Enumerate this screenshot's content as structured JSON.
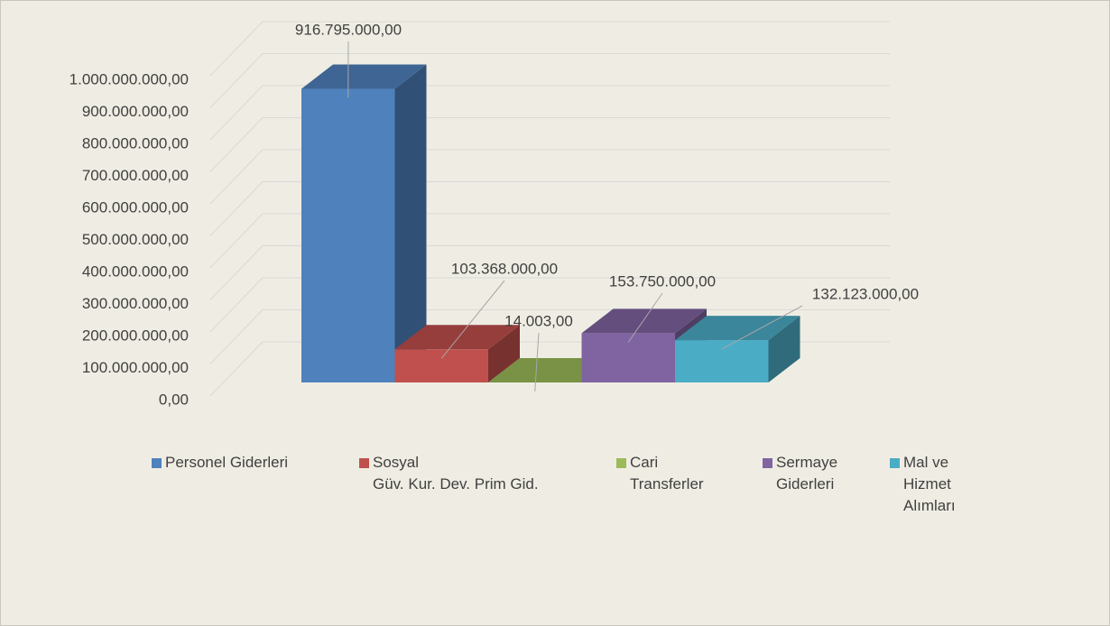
{
  "chart_data": {
    "type": "bar3d",
    "categories": [
      null
    ],
    "series": [
      {
        "name": "Personel Giderleri",
        "color": "#4f81bd",
        "values": [
          916795000
        ],
        "value_labels": [
          "916.795.000,00"
        ]
      },
      {
        "name": "Sosyal\nGüv. Kur. Dev. Prim Gid.",
        "color": "#c0504d",
        "values": [
          103368000
        ],
        "value_labels": [
          "103.368.000,00"
        ]
      },
      {
        "name": "Cari\nTransferler",
        "color": "#9bbb59",
        "values": [
          14003
        ],
        "value_labels": [
          "14.003,00"
        ]
      },
      {
        "name": "Sermaye\nGiderleri",
        "color": "#8064a2",
        "values": [
          153750000
        ],
        "value_labels": [
          "153.750.000,00"
        ]
      },
      {
        "name": "Mal ve\nHizmet\nAlımları",
        "color": "#4bacc6",
        "values": [
          132123000
        ],
        "value_labels": [
          "132.123.000,00"
        ]
      }
    ],
    "ylim": [
      0,
      1000000000
    ],
    "yticks": [
      {
        "value": 0,
        "label": "0,00"
      },
      {
        "value": 100000000,
        "label": "100.000.000,00"
      },
      {
        "value": 200000000,
        "label": "200.000.000,00"
      },
      {
        "value": 300000000,
        "label": "300.000.000,00"
      },
      {
        "value": 400000000,
        "label": "400.000.000,00"
      },
      {
        "value": 500000000,
        "label": "500.000.000,00"
      },
      {
        "value": 600000000,
        "label": "600.000.000,00"
      },
      {
        "value": 700000000,
        "label": "700.000.000,00"
      },
      {
        "value": 800000000,
        "label": "800.000.000,00"
      },
      {
        "value": 900000000,
        "label": "900.000.000,00"
      },
      {
        "value": 1000000000,
        "label": "1.000.000.000,00"
      }
    ],
    "grid": true,
    "legend": "bottom"
  }
}
